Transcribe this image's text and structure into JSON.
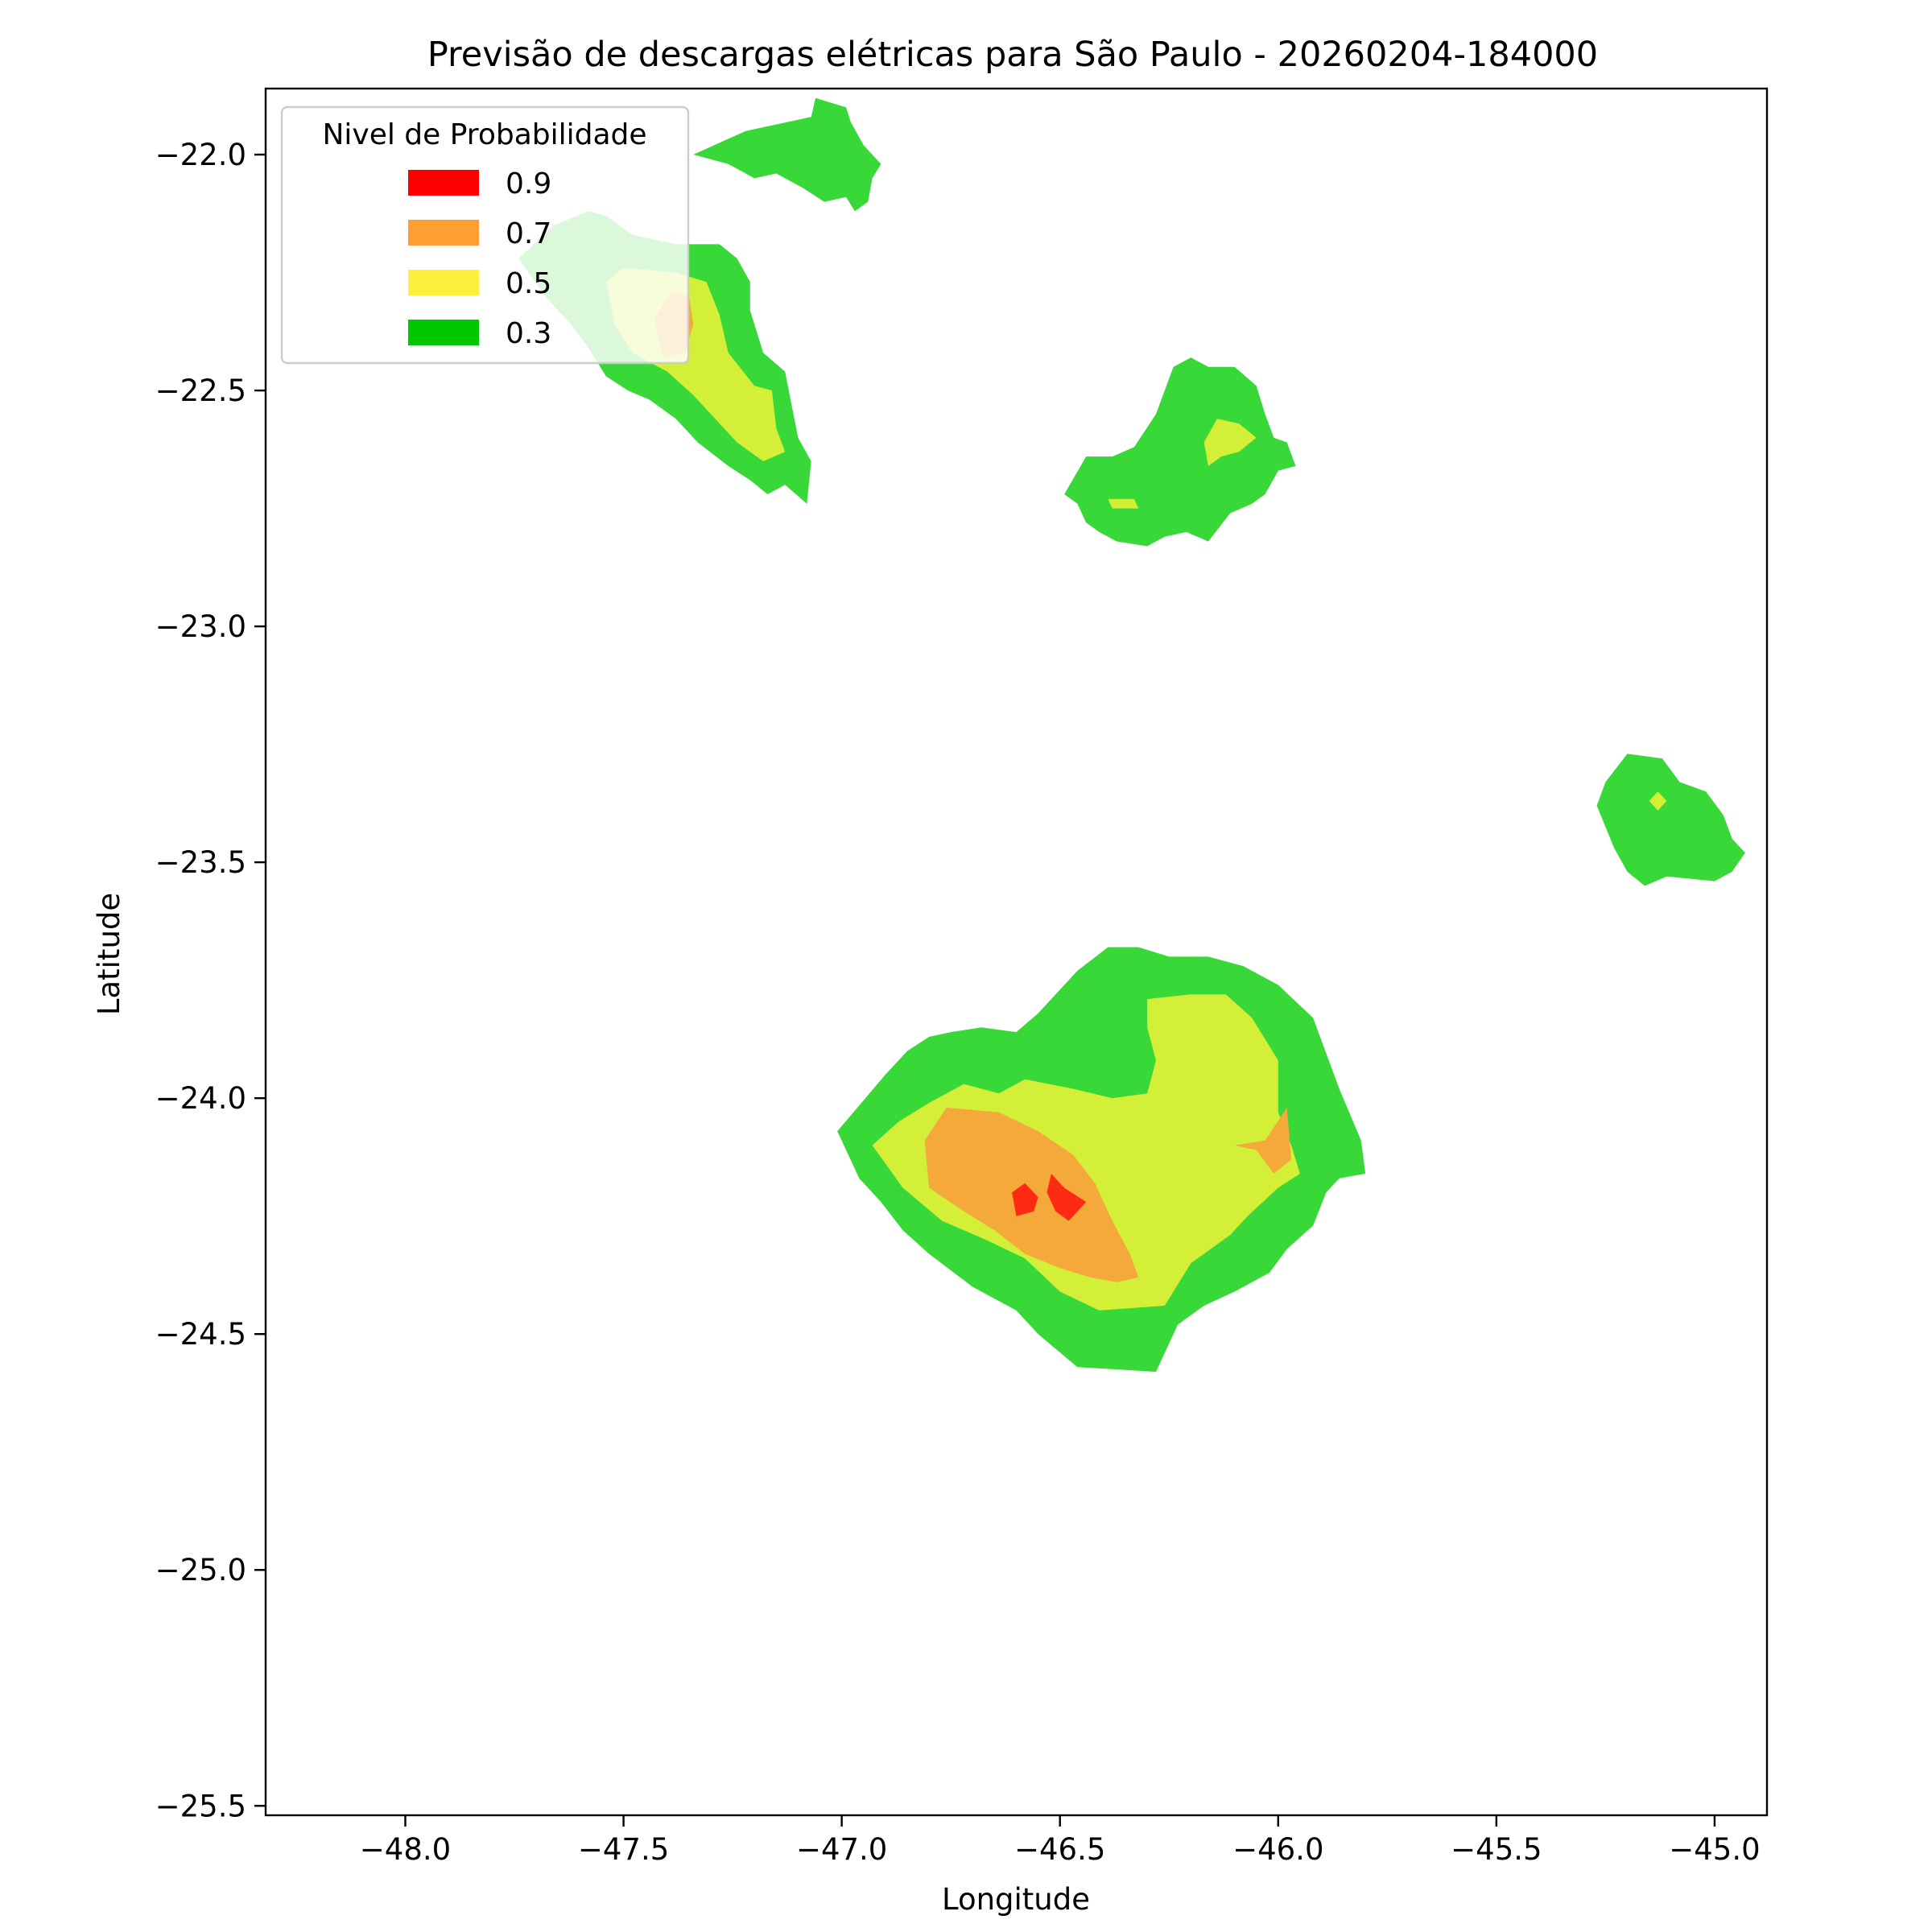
{
  "chart_data": {
    "type": "heatmap",
    "subtype": "filled-contour",
    "title": "Previsão de descargas elétricas para São Paulo - 20260204-184000",
    "xlabel": "Longitude",
    "ylabel": "Latitude",
    "xlim": [
      -48.32,
      -44.88
    ],
    "ylim": [
      -25.52,
      -21.86
    ],
    "x_ticks": [
      -48.0,
      -47.5,
      -47.0,
      -46.5,
      -46.0,
      -45.5,
      -45.0
    ],
    "y_ticks": [
      -22.0,
      -22.5,
      -23.0,
      -23.5,
      -24.0,
      -24.5,
      -25.0,
      -25.5
    ],
    "x_tick_labels": [
      "−48.0",
      "−47.5",
      "−47.0",
      "−46.5",
      "−46.0",
      "−45.5",
      "−45.0"
    ],
    "y_tick_labels": [
      "−22.0",
      "−22.5",
      "−23.0",
      "−23.5",
      "−24.0",
      "−24.5",
      "−25.0",
      "−25.5"
    ],
    "grid": false,
    "legend": {
      "title": "Nivel de Probabilidade",
      "position": "top-left",
      "entries": [
        {
          "label": "0.9",
          "color": "#ff0000"
        },
        {
          "label": "0.7",
          "color": "#ff9f33"
        },
        {
          "label": "0.5",
          "color": "#ffef3d"
        },
        {
          "label": "0.3",
          "color": "#00c800"
        }
      ]
    },
    "level_colors": {
      "0.3": "#38d838",
      "0.5": "#d4ef38",
      "0.7": "#f4a93a",
      "0.9": "#ff2a12"
    },
    "regions": [
      {
        "name": "north-cell-top",
        "level": "0.3",
        "points": [
          [
            -47.34,
            -22.0
          ],
          [
            -47.22,
            -21.95
          ],
          [
            -47.07,
            -21.92
          ],
          [
            -47.06,
            -21.88
          ],
          [
            -46.99,
            -21.9
          ],
          [
            -46.98,
            -21.93
          ],
          [
            -46.95,
            -21.98
          ],
          [
            -46.91,
            -22.02
          ],
          [
            -46.93,
            -22.05
          ],
          [
            -46.94,
            -22.1
          ],
          [
            -46.97,
            -22.12
          ],
          [
            -46.99,
            -22.09
          ],
          [
            -47.04,
            -22.1
          ],
          [
            -47.09,
            -22.07
          ],
          [
            -47.15,
            -22.04
          ],
          [
            -47.2,
            -22.05
          ],
          [
            -47.26,
            -22.02
          ]
        ]
      },
      {
        "name": "north-cell-west",
        "level": "0.3",
        "points": [
          [
            -47.74,
            -22.22
          ],
          [
            -47.66,
            -22.15
          ],
          [
            -47.58,
            -22.12
          ],
          [
            -47.54,
            -22.13
          ],
          [
            -47.48,
            -22.17
          ],
          [
            -47.38,
            -22.19
          ],
          [
            -47.28,
            -22.19
          ],
          [
            -47.24,
            -22.22
          ],
          [
            -47.21,
            -22.27
          ],
          [
            -47.21,
            -22.33
          ],
          [
            -47.18,
            -22.42
          ],
          [
            -47.13,
            -22.46
          ],
          [
            -47.1,
            -22.6
          ],
          [
            -47.07,
            -22.65
          ],
          [
            -47.08,
            -22.74
          ],
          [
            -47.13,
            -22.7
          ],
          [
            -47.17,
            -22.72
          ],
          [
            -47.21,
            -22.69
          ],
          [
            -47.26,
            -22.66
          ],
          [
            -47.33,
            -22.61
          ],
          [
            -47.38,
            -22.56
          ],
          [
            -47.44,
            -22.52
          ],
          [
            -47.49,
            -22.5
          ],
          [
            -47.54,
            -22.47
          ],
          [
            -47.58,
            -22.41
          ],
          [
            -47.62,
            -22.36
          ],
          [
            -47.68,
            -22.3
          ]
        ]
      },
      {
        "name": "north-cell-west-mid",
        "level": "0.5",
        "points": [
          [
            -47.54,
            -22.27
          ],
          [
            -47.5,
            -22.24
          ],
          [
            -47.38,
            -22.25
          ],
          [
            -47.31,
            -22.27
          ],
          [
            -47.28,
            -22.34
          ],
          [
            -47.26,
            -22.42
          ],
          [
            -47.2,
            -22.49
          ],
          [
            -47.16,
            -22.5
          ],
          [
            -47.15,
            -22.58
          ],
          [
            -47.13,
            -22.63
          ],
          [
            -47.18,
            -22.65
          ],
          [
            -47.24,
            -22.61
          ],
          [
            -47.28,
            -22.57
          ],
          [
            -47.34,
            -22.51
          ],
          [
            -47.4,
            -22.46
          ],
          [
            -47.48,
            -22.42
          ],
          [
            -47.52,
            -22.36
          ]
        ]
      },
      {
        "name": "north-cell-west-core",
        "level": "0.7",
        "points": [
          [
            -47.43,
            -22.35
          ],
          [
            -47.39,
            -22.29
          ],
          [
            -47.35,
            -22.3
          ],
          [
            -47.34,
            -22.36
          ],
          [
            -47.36,
            -22.42
          ],
          [
            -47.41,
            -22.43
          ]
        ]
      },
      {
        "name": "central-north-cell",
        "level": "0.3",
        "points": [
          [
            -46.49,
            -22.72
          ],
          [
            -46.44,
            -22.64
          ],
          [
            -46.38,
            -22.64
          ],
          [
            -46.33,
            -22.62
          ],
          [
            -46.28,
            -22.55
          ],
          [
            -46.26,
            -22.5
          ],
          [
            -46.24,
            -22.45
          ],
          [
            -46.2,
            -22.43
          ],
          [
            -46.16,
            -22.45
          ],
          [
            -46.1,
            -22.45
          ],
          [
            -46.05,
            -22.49
          ],
          [
            -46.03,
            -22.55
          ],
          [
            -46.01,
            -22.6
          ],
          [
            -45.98,
            -22.61
          ],
          [
            -45.96,
            -22.66
          ],
          [
            -46.0,
            -22.67
          ],
          [
            -46.03,
            -22.72
          ],
          [
            -46.06,
            -22.74
          ],
          [
            -46.11,
            -22.76
          ],
          [
            -46.16,
            -22.82
          ],
          [
            -46.21,
            -22.8
          ],
          [
            -46.26,
            -22.81
          ],
          [
            -46.3,
            -22.83
          ],
          [
            -46.37,
            -22.82
          ],
          [
            -46.41,
            -22.8
          ],
          [
            -46.44,
            -22.78
          ],
          [
            -46.46,
            -22.74
          ]
        ]
      },
      {
        "name": "central-north-cell-mid-a",
        "level": "0.5",
        "points": [
          [
            -46.17,
            -22.61
          ],
          [
            -46.14,
            -22.56
          ],
          [
            -46.09,
            -22.57
          ],
          [
            -46.05,
            -22.6
          ],
          [
            -46.09,
            -22.63
          ],
          [
            -46.13,
            -22.64
          ],
          [
            -46.16,
            -22.66
          ]
        ]
      },
      {
        "name": "central-north-cell-mid-b",
        "level": "0.5",
        "points": [
          [
            -46.39,
            -22.73
          ],
          [
            -46.33,
            -22.73
          ],
          [
            -46.32,
            -22.75
          ],
          [
            -46.38,
            -22.75
          ]
        ]
      },
      {
        "name": "east-cell",
        "level": "0.3",
        "points": [
          [
            -45.25,
            -23.33
          ],
          [
            -45.2,
            -23.27
          ],
          [
            -45.12,
            -23.28
          ],
          [
            -45.08,
            -23.33
          ],
          [
            -45.02,
            -23.35
          ],
          [
            -44.98,
            -23.4
          ],
          [
            -44.96,
            -23.45
          ],
          [
            -44.93,
            -23.48
          ],
          [
            -44.96,
            -23.52
          ],
          [
            -45.0,
            -23.54
          ],
          [
            -45.11,
            -23.53
          ],
          [
            -45.16,
            -23.55
          ],
          [
            -45.2,
            -23.52
          ],
          [
            -45.23,
            -23.47
          ],
          [
            -45.27,
            -23.38
          ]
        ]
      },
      {
        "name": "east-cell-mid",
        "level": "0.5",
        "points": [
          [
            -45.15,
            -23.37
          ],
          [
            -45.13,
            -23.35
          ],
          [
            -45.11,
            -23.37
          ],
          [
            -45.13,
            -23.39
          ]
        ]
      },
      {
        "name": "south-cell",
        "level": "0.3",
        "points": [
          [
            -47.01,
            -24.07
          ],
          [
            -46.9,
            -23.95
          ],
          [
            -46.85,
            -23.9
          ],
          [
            -46.8,
            -23.87
          ],
          [
            -46.75,
            -23.86
          ],
          [
            -46.68,
            -23.85
          ],
          [
            -46.6,
            -23.86
          ],
          [
            -46.55,
            -23.82
          ],
          [
            -46.51,
            -23.78
          ],
          [
            -46.46,
            -23.73
          ],
          [
            -46.39,
            -23.68
          ],
          [
            -46.32,
            -23.68
          ],
          [
            -46.25,
            -23.7
          ],
          [
            -46.16,
            -23.7
          ],
          [
            -46.08,
            -23.72
          ],
          [
            -46.0,
            -23.76
          ],
          [
            -45.92,
            -23.83
          ],
          [
            -45.86,
            -23.98
          ],
          [
            -45.81,
            -24.09
          ],
          [
            -45.8,
            -24.16
          ],
          [
            -45.86,
            -24.17
          ],
          [
            -45.89,
            -24.2
          ],
          [
            -45.92,
            -24.27
          ],
          [
            -45.98,
            -24.32
          ],
          [
            -46.02,
            -24.37
          ],
          [
            -46.1,
            -24.41
          ],
          [
            -46.17,
            -24.44
          ],
          [
            -46.23,
            -24.48
          ],
          [
            -46.28,
            -24.58
          ],
          [
            -46.46,
            -24.57
          ],
          [
            -46.55,
            -24.5
          ],
          [
            -46.6,
            -24.45
          ],
          [
            -46.7,
            -24.4
          ],
          [
            -46.8,
            -24.33
          ],
          [
            -46.86,
            -24.28
          ],
          [
            -46.91,
            -24.22
          ],
          [
            -46.96,
            -24.17
          ]
        ]
      },
      {
        "name": "south-cell-mid",
        "level": "0.5",
        "points": [
          [
            -46.93,
            -24.1
          ],
          [
            -46.87,
            -24.05
          ],
          [
            -46.8,
            -24.01
          ],
          [
            -46.72,
            -23.97
          ],
          [
            -46.64,
            -23.99
          ],
          [
            -46.58,
            -23.96
          ],
          [
            -46.47,
            -23.98
          ],
          [
            -46.38,
            -24.0
          ],
          [
            -46.3,
            -23.99
          ],
          [
            -46.28,
            -23.92
          ],
          [
            -46.3,
            -23.85
          ],
          [
            -46.3,
            -23.79
          ],
          [
            -46.2,
            -23.78
          ],
          [
            -46.12,
            -23.78
          ],
          [
            -46.06,
            -23.83
          ],
          [
            -46.0,
            -23.92
          ],
          [
            -46.0,
            -24.03
          ],
          [
            -45.97,
            -24.1
          ],
          [
            -45.95,
            -24.16
          ],
          [
            -46.0,
            -24.19
          ],
          [
            -46.07,
            -24.25
          ],
          [
            -46.11,
            -24.29
          ],
          [
            -46.2,
            -24.35
          ],
          [
            -46.26,
            -24.44
          ],
          [
            -46.41,
            -24.45
          ],
          [
            -46.5,
            -24.41
          ],
          [
            -46.58,
            -24.34
          ],
          [
            -46.67,
            -24.3
          ],
          [
            -46.77,
            -24.26
          ],
          [
            -46.86,
            -24.19
          ]
        ]
      },
      {
        "name": "south-cell-core",
        "level": "0.7",
        "points": [
          [
            -46.81,
            -24.09
          ],
          [
            -46.76,
            -24.02
          ],
          [
            -46.64,
            -24.03
          ],
          [
            -46.55,
            -24.07
          ],
          [
            -46.47,
            -24.12
          ],
          [
            -46.42,
            -24.18
          ],
          [
            -46.38,
            -24.26
          ],
          [
            -46.34,
            -24.33
          ],
          [
            -46.32,
            -24.38
          ],
          [
            -46.37,
            -24.39
          ],
          [
            -46.43,
            -24.38
          ],
          [
            -46.5,
            -24.36
          ],
          [
            -46.58,
            -24.33
          ],
          [
            -46.65,
            -24.28
          ],
          [
            -46.72,
            -24.24
          ],
          [
            -46.8,
            -24.19
          ]
        ]
      },
      {
        "name": "south-cell-core-east",
        "level": "0.7",
        "points": [
          [
            -46.1,
            -24.1
          ],
          [
            -46.05,
            -24.11
          ],
          [
            -46.01,
            -24.16
          ],
          [
            -45.97,
            -24.13
          ],
          [
            -45.98,
            -24.02
          ],
          [
            -46.03,
            -24.09
          ]
        ]
      },
      {
        "name": "south-cell-peak-a",
        "level": "0.9",
        "points": [
          [
            -46.61,
            -24.2
          ],
          [
            -46.58,
            -24.18
          ],
          [
            -46.55,
            -24.21
          ],
          [
            -46.56,
            -24.24
          ],
          [
            -46.6,
            -24.25
          ]
        ]
      },
      {
        "name": "south-cell-peak-b",
        "level": "0.9",
        "points": [
          [
            -46.52,
            -24.16
          ],
          [
            -46.49,
            -24.19
          ],
          [
            -46.44,
            -24.22
          ],
          [
            -46.48,
            -24.26
          ],
          [
            -46.51,
            -24.24
          ],
          [
            -46.53,
            -24.2
          ]
        ]
      },
      {
        "name": "south-cell-gap",
        "level": "0.3",
        "points": [
          [
            -46.52,
            -23.88
          ],
          [
            -46.48,
            -23.86
          ],
          [
            -46.44,
            -23.9
          ],
          [
            -46.5,
            -23.93
          ]
        ]
      }
    ]
  }
}
